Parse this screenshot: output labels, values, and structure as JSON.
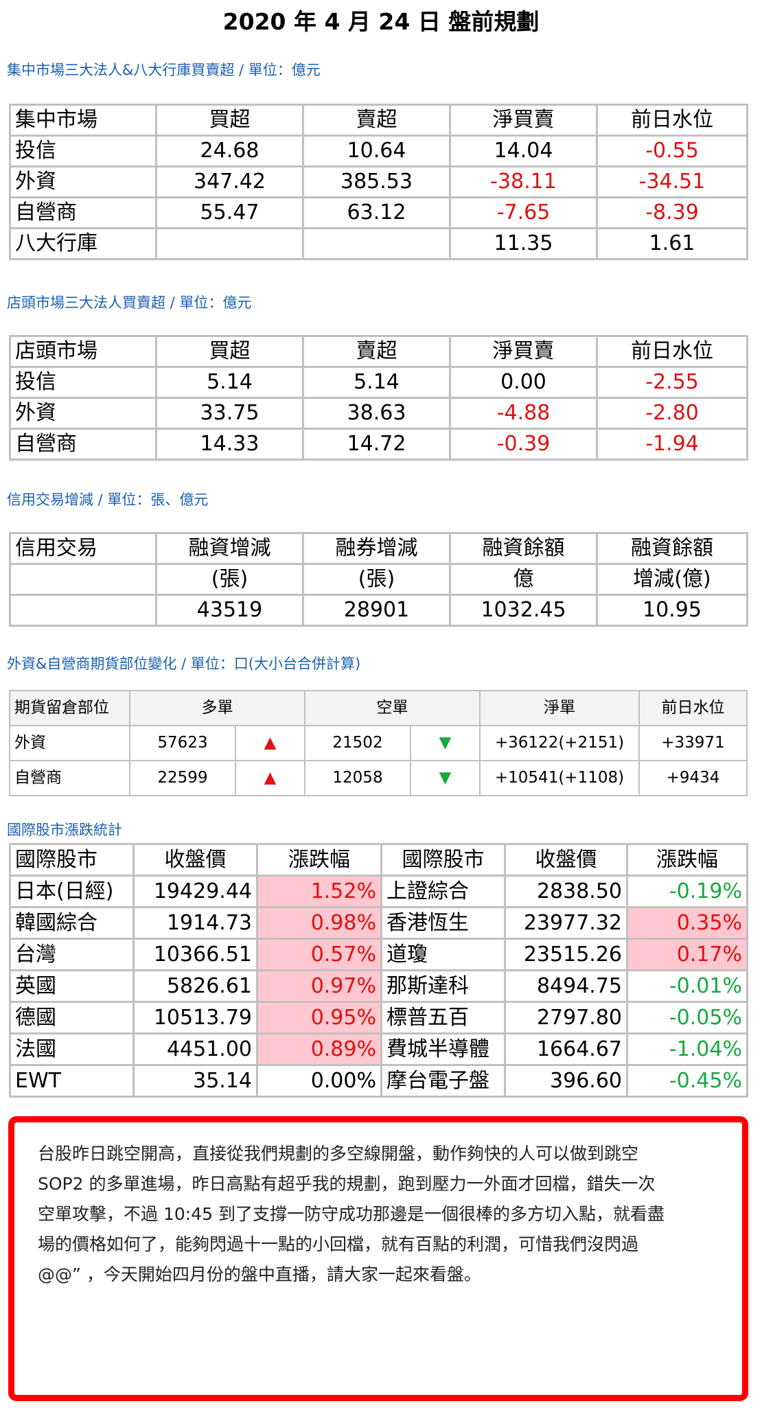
{
  "title": "2020 年 4 月 24 日  盤前規劃",
  "tse": {
    "section_title": "集中市場三大法人&八大行庫買賣超 / 單位：億元",
    "headers": [
      "集中市場",
      "買超",
      "賣超",
      "淨買賣",
      "前日水位"
    ],
    "rows": [
      [
        "投信",
        "24.68",
        "10.64",
        "14.04",
        "-0.55"
      ],
      [
        "外資",
        "347.42",
        "385.53",
        "-38.11",
        "-34.51"
      ],
      [
        "自營商",
        "55.47",
        "63.12",
        "-7.65",
        "-8.39"
      ],
      [
        "八大行庫",
        "",
        "",
        "11.35",
        "1.61"
      ]
    ]
  },
  "otc": {
    "section_title": "店頭市場三大法人買賣超 / 單位：億元",
    "headers": [
      "店頭市場",
      "買超",
      "賣超",
      "淨買賣",
      "前日水位"
    ],
    "rows": [
      [
        "投信",
        "5.14",
        "5.14",
        "0.00",
        "-2.55"
      ],
      [
        "外資",
        "33.75",
        "38.63",
        "-4.88",
        "-2.80"
      ],
      [
        "自營商",
        "14.33",
        "14.72",
        "-0.39",
        "-1.94"
      ]
    ]
  },
  "margin": {
    "section_title": "信用交易增減 / 單位：張、億元",
    "headers": [
      "信用交易",
      "融資增減",
      "融券增減",
      "融資餘額",
      "融資餘額"
    ],
    "units": [
      "",
      "(張)",
      "(張)",
      "億",
      "增減(億)"
    ],
    "values": [
      "",
      "43519",
      "28901",
      "1032.45",
      "10.95"
    ]
  },
  "futures": {
    "section_title": "外資&自營商期貨部位變化 / 單位：口(大小台合併計算)",
    "headers": [
      "期貨留倉部位",
      "多單",
      "空單",
      "淨單",
      "前日水位"
    ],
    "rows": [
      {
        "name": "外資",
        "long": "57623",
        "long_icon": "▲",
        "short": "21502",
        "short_icon": "▼",
        "net": "+36122(+2151)",
        "prev": "+33971"
      },
      {
        "name": "自營商",
        "long": "22599",
        "long_icon": "▲",
        "short": "12058",
        "short_icon": "▼",
        "net": "+10541(+1108)",
        "prev": "+9434"
      }
    ]
  },
  "intl": {
    "section_title": "國際股市漲跌統計",
    "headers": [
      "國際股市",
      "收盤價",
      "漲跌幅",
      "國際股市",
      "收盤價",
      "漲跌幅"
    ],
    "rows": [
      [
        "日本(日經)",
        "19429.44",
        "1.52%",
        "上證綜合",
        "2838.50",
        "-0.19%"
      ],
      [
        "韓國綜合",
        "1914.73",
        "0.98%",
        "香港恆生",
        "23977.32",
        "0.35%"
      ],
      [
        "台灣",
        "10366.51",
        "0.57%",
        "道瓊",
        "23515.26",
        "0.17%"
      ],
      [
        "英國",
        "5826.61",
        "0.97%",
        "那斯達科",
        "8494.75",
        "-0.01%"
      ],
      [
        "德國",
        "10513.79",
        "0.95%",
        "標普五百",
        "2797.80",
        "-0.05%"
      ],
      [
        "法國",
        "4451.00",
        "0.89%",
        "費城半導體",
        "1664.67",
        "-1.04%"
      ],
      [
        "EWT",
        "35.14",
        "0.00%",
        "摩台電子盤",
        "396.60",
        "-0.45%"
      ]
    ]
  },
  "note": {
    "lines": [
      "台股昨日跳空開高，直接從我們規劃的多空線開盤，動作夠快的人可以做到跳空",
      "SOP2 的多單進場，昨日高點有超乎我的規劃，跑到壓力一外面才回檔，錯失一次",
      "空單攻擊，不過 10:45 到了支撐一防守成功那邊是一個很棒的多方切入點，就看盡",
      "場的價格如何了，能夠閃過十一點的小回檔，就有百點的利潤，可惜我們沒閃過",
      "@@”  ，今天開始四月份的盤中直播，請大家一起來看盤。"
    ]
  },
  "colors": {
    "section_title": "#1a5fb4",
    "negative": "#e01010",
    "positive": "#18a83e",
    "highlight": "#ffc7cf",
    "note_border": "#ff0000"
  }
}
